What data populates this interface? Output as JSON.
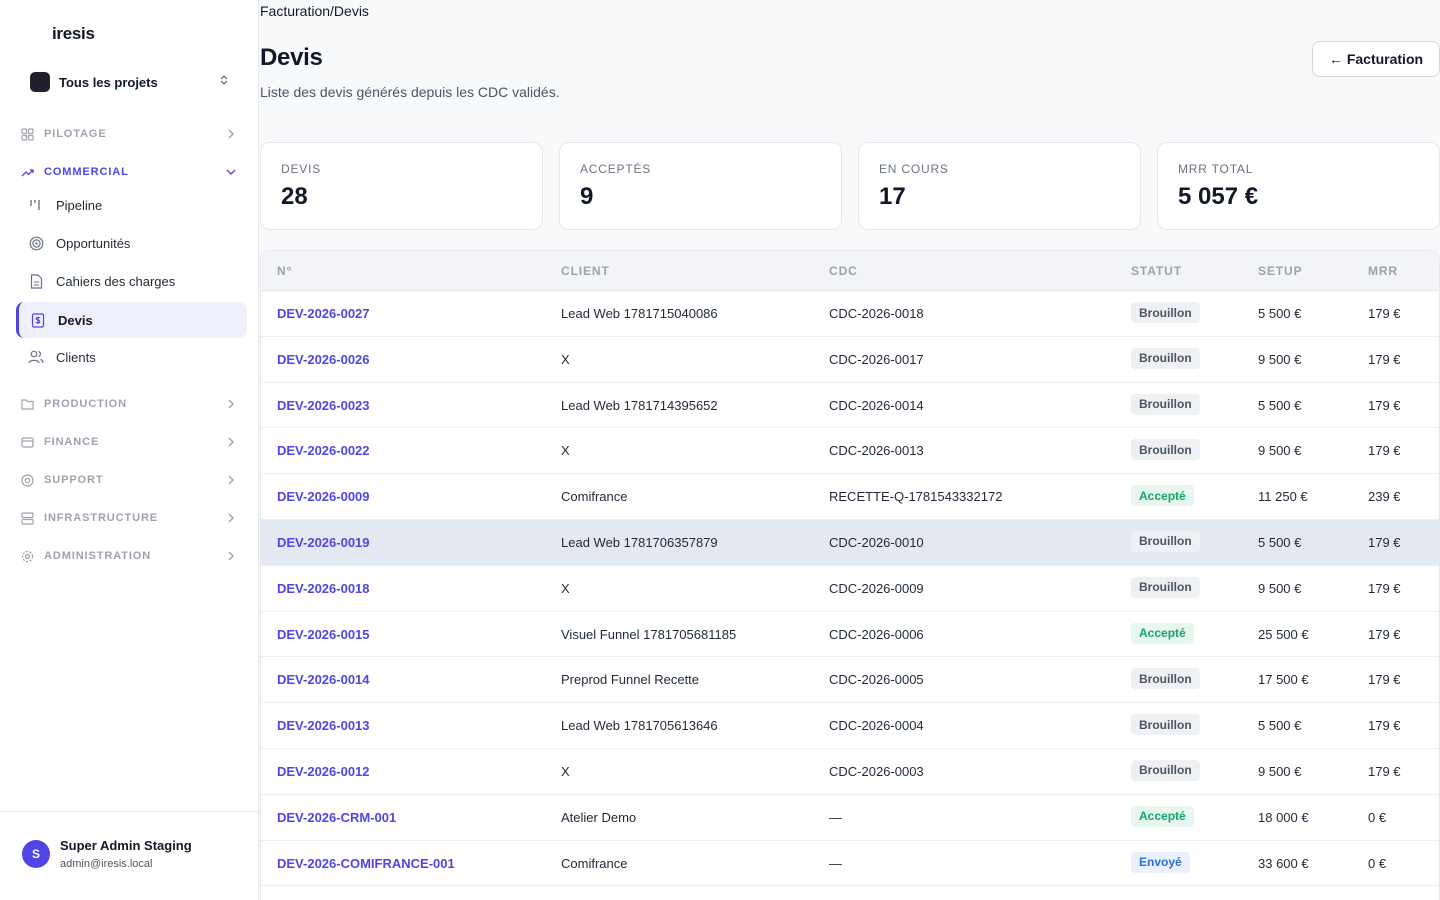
{
  "brand": "iresis",
  "project_switcher": {
    "label": "Tous les projets"
  },
  "nav": {
    "pilotage": "PILOTAGE",
    "commercial": "COMMERCIAL",
    "commercial_items": [
      "Pipeline",
      "Opportunités",
      "Cahiers des charges",
      "Devis",
      "Clients"
    ],
    "production": "PRODUCTION",
    "finance": "FINANCE",
    "support": "SUPPORT",
    "infrastructure": "INFRASTRUCTURE",
    "administration": "ADMINISTRATION"
  },
  "user": {
    "initial": "S",
    "name": "Super Admin Staging",
    "email": "admin@iresis.local"
  },
  "breadcrumb": "Facturation/Devis",
  "page": {
    "title": "Devis",
    "subtitle": "Liste des devis générés depuis les CDC validés.",
    "back_button": "← Facturation"
  },
  "stats": [
    {
      "label": "DEVIS",
      "value": "28"
    },
    {
      "label": "ACCEPTÉS",
      "value": "9"
    },
    {
      "label": "EN COURS",
      "value": "17"
    },
    {
      "label": "MRR TOTAL",
      "value": "5 057 €"
    }
  ],
  "table": {
    "headers": [
      "N°",
      "CLIENT",
      "CDC",
      "STATUT",
      "SETUP",
      "MRR"
    ],
    "rows": [
      {
        "num": "DEV-2026-0027",
        "client": "Lead Web 1781715040086",
        "cdc": "CDC-2026-0018",
        "status": "Brouillon",
        "setup": "5 500 €",
        "mrr": "179 €"
      },
      {
        "num": "DEV-2026-0026",
        "client": "X",
        "cdc": "CDC-2026-0017",
        "status": "Brouillon",
        "setup": "9 500 €",
        "mrr": "179 €"
      },
      {
        "num": "DEV-2026-0023",
        "client": "Lead Web 1781714395652",
        "cdc": "CDC-2026-0014",
        "status": "Brouillon",
        "setup": "5 500 €",
        "mrr": "179 €"
      },
      {
        "num": "DEV-2026-0022",
        "client": "X",
        "cdc": "CDC-2026-0013",
        "status": "Brouillon",
        "setup": "9 500 €",
        "mrr": "179 €"
      },
      {
        "num": "DEV-2026-0009",
        "client": "Comifrance",
        "cdc": "RECETTE-Q-1781543332172",
        "status": "Accepté",
        "setup": "11 250 €",
        "mrr": "239 €"
      },
      {
        "num": "DEV-2026-0019",
        "client": "Lead Web 1781706357879",
        "cdc": "CDC-2026-0010",
        "status": "Brouillon",
        "setup": "5 500 €",
        "mrr": "179 €"
      },
      {
        "num": "DEV-2026-0018",
        "client": "X",
        "cdc": "CDC-2026-0009",
        "status": "Brouillon",
        "setup": "9 500 €",
        "mrr": "179 €"
      },
      {
        "num": "DEV-2026-0015",
        "client": "Visuel Funnel 1781705681185",
        "cdc": "CDC-2026-0006",
        "status": "Accepté",
        "setup": "25 500 €",
        "mrr": "179 €"
      },
      {
        "num": "DEV-2026-0014",
        "client": "Preprod Funnel Recette",
        "cdc": "CDC-2026-0005",
        "status": "Brouillon",
        "setup": "17 500 €",
        "mrr": "179 €"
      },
      {
        "num": "DEV-2026-0013",
        "client": "Lead Web 1781705613646",
        "cdc": "CDC-2026-0004",
        "status": "Brouillon",
        "setup": "5 500 €",
        "mrr": "179 €"
      },
      {
        "num": "DEV-2026-0012",
        "client": "X",
        "cdc": "CDC-2026-0003",
        "status": "Brouillon",
        "setup": "9 500 €",
        "mrr": "179 €"
      },
      {
        "num": "DEV-2026-CRM-001",
        "client": "Atelier Demo",
        "cdc": "—",
        "status": "Accepté",
        "setup": "18 000 €",
        "mrr": "0 €"
      },
      {
        "num": "DEV-2026-COMIFRANCE-001",
        "client": "Comifrance",
        "cdc": "—",
        "status": "Envoyé",
        "setup": "33 600 €",
        "mrr": "0 €"
      }
    ]
  },
  "colors": {
    "accent": "#4f46e5",
    "accepted": "#16a36a",
    "sent": "#2b6fd6",
    "draft": "#4b5563"
  }
}
